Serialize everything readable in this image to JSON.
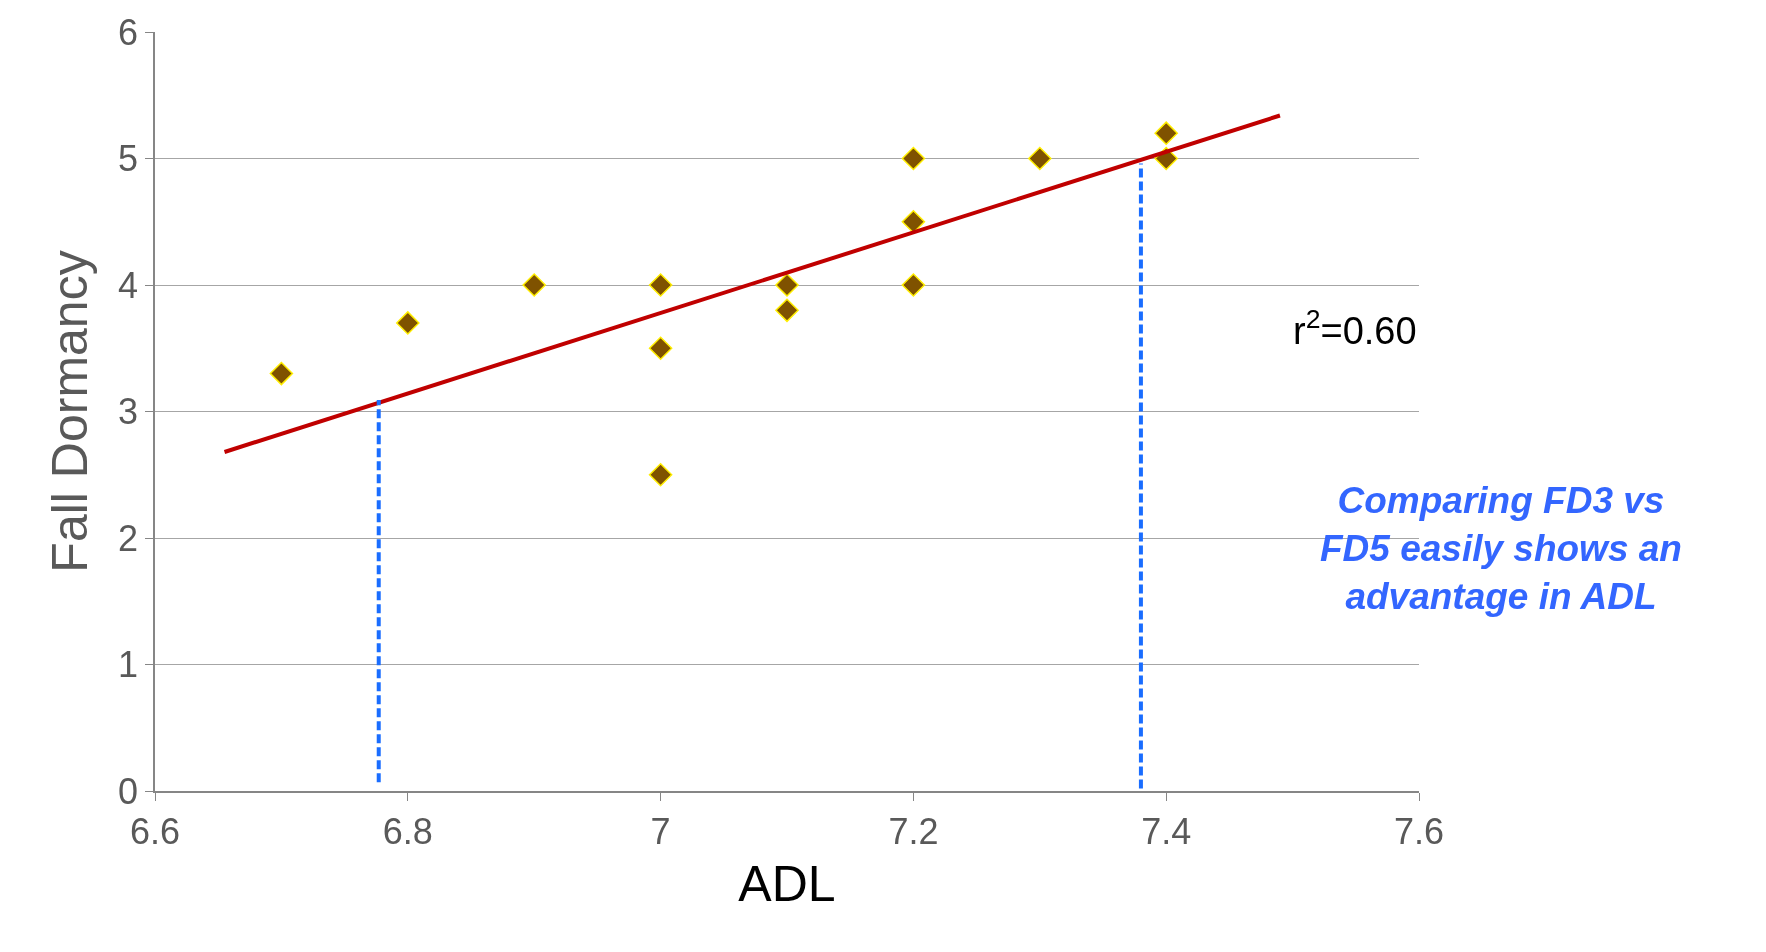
{
  "chart_data": {
    "type": "scatter",
    "xlabel": "ADL",
    "ylabel": "Fall Dormancy",
    "xlim": [
      6.6,
      7.6
    ],
    "xticks": [
      6.6,
      6.8,
      {
        "value": 7,
        "label": "7"
      },
      7.2,
      7.4,
      7.6
    ],
    "ylim": [
      0,
      6
    ],
    "yticks": [
      0,
      1,
      2,
      3,
      4,
      5,
      6
    ],
    "grid": "y",
    "marker": "diamond",
    "series": [
      {
        "color": "#7f5200",
        "x": [
          6.7,
          6.8,
          6.9,
          7.0,
          7.0,
          7.0,
          7.1,
          7.1,
          7.2,
          7.2,
          7.2,
          7.3,
          7.4,
          7.4
        ],
        "values": [
          3.3,
          3.7,
          4.0,
          4.0,
          3.5,
          2.5,
          4.0,
          3.8,
          5.0,
          4.5,
          4.0,
          5.0,
          5.2,
          5.0
        ]
      },
      {
        "type": "line",
        "color": "#c00000",
        "line_style": "solid",
        "marker": "none",
        "x": [
          6.655,
          7.49
        ],
        "values": [
          2.68,
          5.34
        ]
      },
      {
        "type": "line",
        "color": "#1a6dff",
        "line_style": "dashed",
        "marker": "none",
        "x": [
          6.777,
          6.777
        ],
        "values": [
          0.07,
          3.09
        ]
      },
      {
        "type": "line",
        "color": "#1a6dff",
        "line_style": "dashed",
        "marker": "none",
        "x": [
          7.38,
          7.38
        ],
        "values": [
          0.02,
          4.96
        ]
      }
    ],
    "annotations": [
      "r$^{2}$=0.60",
      "Comparing FD3 vs\nFD5 easily shows an\nadvantage in ADL"
    ]
  }
}
